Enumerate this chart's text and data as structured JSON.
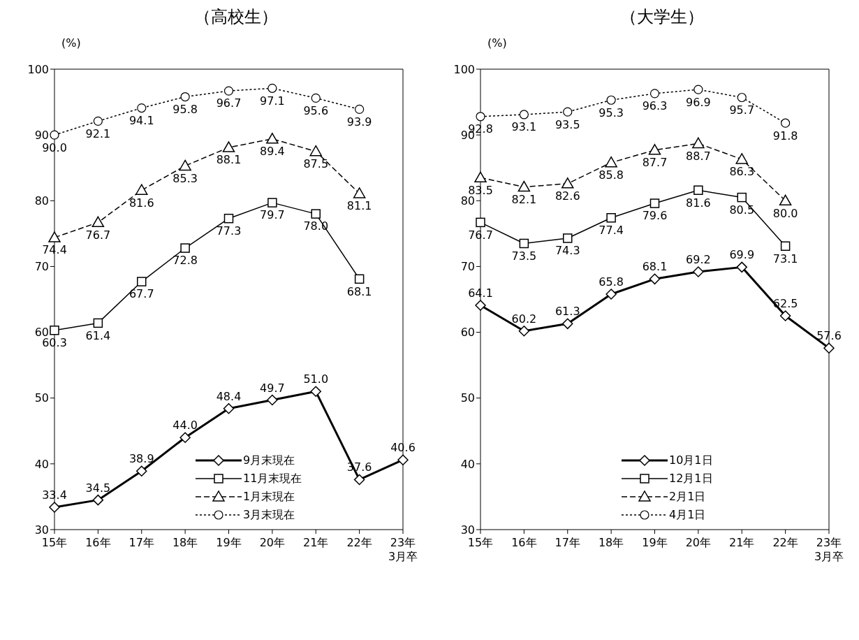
{
  "chart_data": [
    {
      "type": "line",
      "title": "（高校生）",
      "ylabel": "(%)",
      "categories": [
        "15年",
        "16年",
        "17年",
        "18年",
        "19年",
        "20年",
        "21年",
        "22年",
        "23年\n3月卒"
      ],
      "ylim": [
        30,
        100
      ],
      "yticks": [
        30,
        40,
        50,
        60,
        70,
        80,
        90,
        100
      ],
      "legend": "bottom right",
      "series": [
        {
          "name": "9月末現在",
          "color": "#000000",
          "marker": "diamond",
          "line_style": "solid",
          "values": [
            33.4,
            34.5,
            38.9,
            44.0,
            48.4,
            49.7,
            51.0,
            37.6,
            40.6
          ],
          "value_labels": [
            "33.4",
            "34.5",
            "38.9",
            "44.0",
            "48.4",
            "49.7",
            "51.0",
            "37.6",
            "40.6"
          ]
        },
        {
          "name": "11月末現在",
          "color": "#000000",
          "marker": "square",
          "line_style": "solid",
          "values": [
            60.3,
            61.4,
            67.7,
            72.8,
            77.3,
            79.7,
            78.0,
            68.1,
            null
          ],
          "value_labels": [
            "60.3",
            "61.4",
            "67.7",
            "72.8",
            "77.3",
            "79.7",
            "78.0",
            "68.1",
            null
          ]
        },
        {
          "name": "1月末現在",
          "color": "#000000",
          "marker": "triangle",
          "line_style": "dashed",
          "values": [
            74.4,
            76.7,
            81.6,
            85.3,
            88.1,
            89.4,
            87.5,
            81.1,
            null
          ],
          "value_labels": [
            "74.4",
            "76.7",
            "81.6",
            "85.3",
            "88.1",
            "89.4",
            "87.5",
            "81.1",
            null
          ]
        },
        {
          "name": "3月末現在",
          "color": "#000000",
          "marker": "circle",
          "line_style": "dotted",
          "values": [
            90.0,
            92.1,
            94.1,
            95.8,
            96.7,
            97.1,
            95.6,
            93.9,
            null
          ],
          "value_labels": [
            "90.0",
            "92.1",
            "94.1",
            "95.8",
            "96.7",
            "97.1",
            "95.6",
            "93.9",
            null
          ]
        }
      ]
    },
    {
      "type": "line",
      "title": "（大学生）",
      "ylabel": "(%)",
      "categories": [
        "15年",
        "16年",
        "17年",
        "18年",
        "19年",
        "20年",
        "21年",
        "22年",
        "23年\n3月卒"
      ],
      "ylim": [
        30,
        100
      ],
      "yticks": [
        30,
        40,
        50,
        60,
        70,
        80,
        90,
        100
      ],
      "legend": "bottom right",
      "series": [
        {
          "name": "10月1日",
          "color": "#000000",
          "marker": "diamond",
          "line_style": "solid",
          "values": [
            64.1,
            60.2,
            61.3,
            65.8,
            68.1,
            69.2,
            69.9,
            62.5,
            57.6
          ],
          "value_labels": [
            "64.1",
            "60.2",
            "61.3",
            "65.8",
            "68.1",
            "69.2",
            "69.9",
            "62.5",
            "57.6"
          ]
        },
        {
          "name": "12月1日",
          "color": "#000000",
          "marker": "square",
          "line_style": "solid",
          "values": [
            76.7,
            73.5,
            74.3,
            77.4,
            79.6,
            81.6,
            80.5,
            73.1,
            null
          ],
          "value_labels": [
            "76.7",
            "73.5",
            "74.3",
            "77.4",
            "79.6",
            "81.6",
            "80.5",
            "73.1",
            null
          ]
        },
        {
          "name": "2月1日",
          "color": "#000000",
          "marker": "triangle",
          "line_style": "dashed",
          "values": [
            83.5,
            82.1,
            82.6,
            85.8,
            87.7,
            88.7,
            86.3,
            80.0,
            null
          ],
          "value_labels": [
            "83.5",
            "82.1",
            "82.6",
            "85.8",
            "87.7",
            "88.7",
            "86.3",
            "80.0",
            null
          ]
        },
        {
          "name": "4月1日",
          "color": "#000000",
          "marker": "circle",
          "line_style": "dotted",
          "values": [
            92.8,
            93.1,
            93.5,
            95.3,
            96.3,
            96.9,
            95.7,
            91.8,
            null
          ],
          "value_labels": [
            "92.8",
            "93.1",
            "93.5",
            "95.3",
            "96.3",
            "96.9",
            "95.7",
            "91.8",
            null
          ]
        }
      ]
    }
  ]
}
